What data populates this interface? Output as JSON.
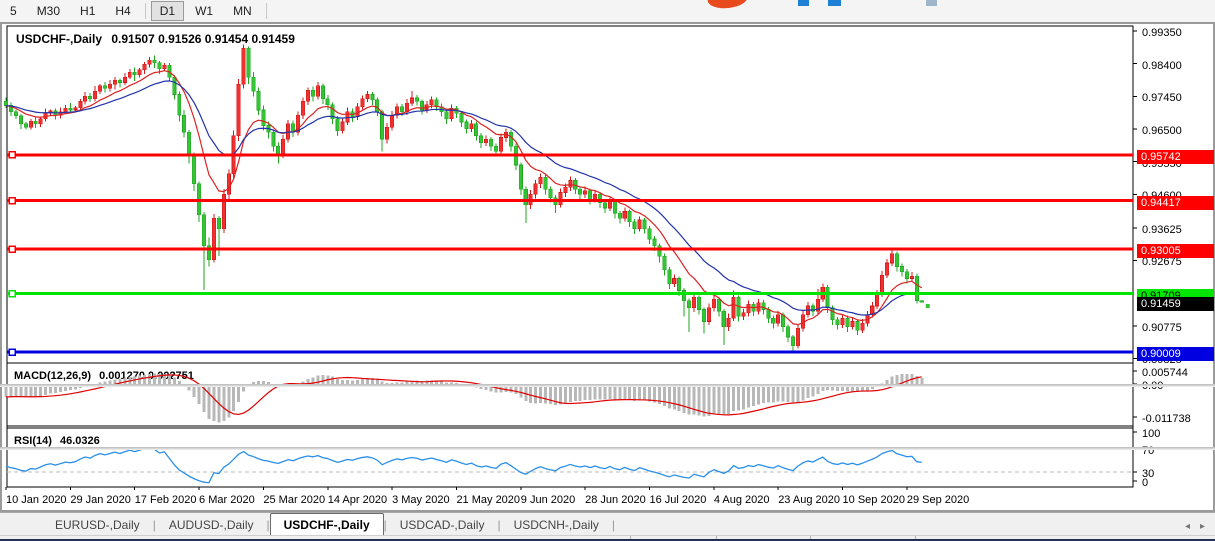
{
  "toolbar": {
    "timeframes": [
      "5",
      "M30",
      "H1",
      "H4",
      "D1",
      "W1",
      "MN"
    ],
    "active_timeframe": "D1",
    "logo_marks": [
      {
        "name": "swoosh",
        "color": "#e8491d",
        "x": 8,
        "w": 40,
        "h": 8,
        "r": true
      },
      {
        "name": "mark1",
        "color": "#1e7fd6",
        "x": 98,
        "w": 11,
        "h": 6,
        "r": false
      },
      {
        "name": "mark2",
        "color": "#1e7fd6",
        "x": 128,
        "w": 13,
        "h": 6,
        "r": false
      },
      {
        "name": "mark3",
        "color": "#9fb6cc",
        "x": 226,
        "w": 11,
        "h": 6,
        "r": false
      }
    ]
  },
  "chart": {
    "title": "USDCHF-,Daily",
    "quotes": "0.91507 0.91526 0.91454 0.91459"
  },
  "macd_panel": {
    "label": "MACD(12,26,9)",
    "values": "0.001270 0.002751",
    "axis_labels": [
      {
        "text": "0.005744",
        "y": 371
      },
      {
        "text": "0.00",
        "y": 384
      },
      {
        "text": "-0.011738",
        "y": 417
      }
    ]
  },
  "rsi_panel": {
    "label": "RSI(14)",
    "value": "46.0326",
    "axis_labels": [
      {
        "text": "100",
        "y": 432
      },
      {
        "text": "70",
        "y": 449
      },
      {
        "text": "30",
        "y": 472
      },
      {
        "text": "0",
        "y": 481
      }
    ]
  },
  "tabs": {
    "items": [
      "EURUSD-,Daily",
      "AUDUSD-,Daily",
      "USDCHF-,Daily",
      "USDCAD-,Daily",
      "USDCNH-,Daily"
    ],
    "active_index": 2,
    "scroll_left": "◂",
    "scroll_right": "▸"
  },
  "status_separators_x": [
    630,
    716,
    810,
    915
  ],
  "chart_data": {
    "type": "candlestick",
    "symbol": "USDCHF",
    "timeframe": "Daily",
    "colors": {
      "up": "#f23030",
      "up_border": "#d01818",
      "down": "#35c435",
      "down_border": "#1ea81e",
      "ma_fast": "#dd2222",
      "ma_slow": "#2233aa",
      "macd_hist": "#b8b8b8",
      "macd_signal": "#e00000",
      "rsi_line": "#2a8fe8",
      "level_dash": "#bbbbbb"
    },
    "price_pane": {
      "y_top": 26,
      "y_bottom": 362,
      "price_top": 0.99493,
      "price_bottom": 0.89722
    },
    "y_ticks": [
      0.9935,
      0.984,
      0.9745,
      0.965,
      0.9555,
      0.946,
      0.93625,
      0.92675,
      0.90775,
      0.89825
    ],
    "sr_lines": [
      {
        "price": 0.95742,
        "label": "0.95742",
        "color": "#ff0000",
        "text_color": "#ffffff"
      },
      {
        "price": 0.94417,
        "label": "0.94417",
        "color": "#ff0000",
        "text_color": "#ffffff"
      },
      {
        "price": 0.93005,
        "label": "0.93005",
        "color": "#ff0000",
        "text_color": "#ffffff"
      },
      {
        "price": 0.91709,
        "label": "0.91709",
        "color": "#00e400",
        "text_color": "#000000"
      },
      {
        "price": 0.90009,
        "label": "0.90009",
        "color": "#0000e0",
        "text_color": "#ffffff"
      }
    ],
    "current_price": {
      "price": 0.91459,
      "label": "0.91459",
      "color": "#000000",
      "text_color": "#ffffff"
    },
    "last_marker": {
      "index": 185,
      "price": 0.9135,
      "color": "#35c435"
    },
    "x_ticks": [
      {
        "index": 0,
        "label": "10 Jan 2020"
      },
      {
        "index": 13,
        "label": "29 Jan 2020"
      },
      {
        "index": 26,
        "label": "17 Feb 2020"
      },
      {
        "index": 39,
        "label": "6 Mar 2020"
      },
      {
        "index": 52,
        "label": "25 Mar 2020"
      },
      {
        "index": 65,
        "label": "14 Apr 2020"
      },
      {
        "index": 78,
        "label": "3 May 2020"
      },
      {
        "index": 91,
        "label": "21 May 2020"
      },
      {
        "index": 104,
        "label": "9 Jun 2020"
      },
      {
        "index": 117,
        "label": "28 Jun 2020"
      },
      {
        "index": 130,
        "label": "16 Jul 2020"
      },
      {
        "index": 143,
        "label": "4 Aug 2020"
      },
      {
        "index": 156,
        "label": "23 Aug 2020"
      },
      {
        "index": 169,
        "label": "10 Sep 2020"
      },
      {
        "index": 182,
        "label": "29 Sep 2020"
      }
    ],
    "ma_fast_period": 10,
    "ma_slow_period": 22,
    "macd": {
      "fast": 12,
      "slow": 26,
      "signal": 9,
      "scale_max": 0.005744,
      "scale_min": -0.011738,
      "pane_top": 364,
      "pane_bottom": 425
    },
    "rsi": {
      "period": 14,
      "levels": [
        70,
        30
      ],
      "pane_y70": 449,
      "pane_y30": 472
    },
    "candles": [
      [
        0.973,
        0.9742,
        0.9711,
        0.9718
      ],
      [
        0.9718,
        0.9727,
        0.9688,
        0.97
      ],
      [
        0.97,
        0.9706,
        0.9679,
        0.9688
      ],
      [
        0.9688,
        0.9694,
        0.965,
        0.9665
      ],
      [
        0.9665,
        0.967,
        0.9648,
        0.9655
      ],
      [
        0.9655,
        0.9679,
        0.9648,
        0.9672
      ],
      [
        0.9672,
        0.9684,
        0.9653,
        0.9665
      ],
      [
        0.9665,
        0.9686,
        0.9656,
        0.968
      ],
      [
        0.968,
        0.971,
        0.9672,
        0.9695
      ],
      [
        0.9695,
        0.9707,
        0.969,
        0.9702
      ],
      [
        0.9702,
        0.9709,
        0.9678,
        0.969
      ],
      [
        0.969,
        0.9712,
        0.9681,
        0.97
      ],
      [
        0.97,
        0.9719,
        0.9695,
        0.971
      ],
      [
        0.971,
        0.9725,
        0.9698,
        0.9705
      ],
      [
        0.9705,
        0.9717,
        0.97,
        0.9712
      ],
      [
        0.9712,
        0.9737,
        0.9702,
        0.973
      ],
      [
        0.973,
        0.9757,
        0.9721,
        0.9745
      ],
      [
        0.9745,
        0.9754,
        0.9729,
        0.9738
      ],
      [
        0.9738,
        0.9775,
        0.973,
        0.976
      ],
      [
        0.976,
        0.978,
        0.9752,
        0.9775
      ],
      [
        0.9775,
        0.9787,
        0.9756,
        0.9768
      ],
      [
        0.9768,
        0.9792,
        0.9759,
        0.978
      ],
      [
        0.978,
        0.9801,
        0.9765,
        0.9792
      ],
      [
        0.9792,
        0.9797,
        0.977,
        0.9785
      ],
      [
        0.9785,
        0.9812,
        0.9778,
        0.98
      ],
      [
        0.98,
        0.9824,
        0.9795,
        0.9815
      ],
      [
        0.9815,
        0.9829,
        0.979,
        0.9808
      ],
      [
        0.9808,
        0.9827,
        0.98,
        0.9822
      ],
      [
        0.9822,
        0.9845,
        0.981,
        0.9838
      ],
      [
        0.9838,
        0.9859,
        0.9829,
        0.985
      ],
      [
        0.985,
        0.9864,
        0.9827,
        0.9842
      ],
      [
        0.9842,
        0.9847,
        0.981,
        0.9825
      ],
      [
        0.9825,
        0.9841,
        0.982,
        0.9835
      ],
      [
        0.9835,
        0.9842,
        0.9788,
        0.98
      ],
      [
        0.98,
        0.9807,
        0.9735,
        0.975
      ],
      [
        0.975,
        0.9759,
        0.9672,
        0.969
      ],
      [
        0.969,
        0.9705,
        0.9625,
        0.964
      ],
      [
        0.964,
        0.9647,
        0.955,
        0.957
      ],
      [
        0.957,
        0.9582,
        0.947,
        0.949
      ],
      [
        0.949,
        0.9497,
        0.938,
        0.94
      ],
      [
        0.94,
        0.9409,
        0.9182,
        0.931
      ],
      [
        0.931,
        0.9334,
        0.925,
        0.927
      ],
      [
        0.927,
        0.9402,
        0.9262,
        0.939
      ],
      [
        0.939,
        0.9397,
        0.928,
        0.936
      ],
      [
        0.936,
        0.9475,
        0.9348,
        0.946
      ],
      [
        0.946,
        0.9532,
        0.9445,
        0.952
      ],
      [
        0.952,
        0.9645,
        0.9508,
        0.963
      ],
      [
        0.963,
        0.9795,
        0.9615,
        0.978
      ],
      [
        0.978,
        0.9895,
        0.9768,
        0.9885
      ],
      [
        0.9885,
        0.989,
        0.978,
        0.98
      ],
      [
        0.98,
        0.9816,
        0.9744,
        0.976
      ],
      [
        0.976,
        0.977,
        0.969,
        0.9705
      ],
      [
        0.9705,
        0.9718,
        0.9645,
        0.966
      ],
      [
        0.966,
        0.9672,
        0.9622,
        0.964
      ],
      [
        0.964,
        0.9649,
        0.9585,
        0.96
      ],
      [
        0.96,
        0.961,
        0.955,
        0.9575
      ],
      [
        0.9575,
        0.9632,
        0.9566,
        0.962
      ],
      [
        0.962,
        0.9676,
        0.961,
        0.9665
      ],
      [
        0.9665,
        0.9674,
        0.9626,
        0.964
      ],
      [
        0.964,
        0.9701,
        0.9631,
        0.969
      ],
      [
        0.969,
        0.9741,
        0.9679,
        0.973
      ],
      [
        0.973,
        0.9771,
        0.972,
        0.9762
      ],
      [
        0.9762,
        0.9773,
        0.973,
        0.9745
      ],
      [
        0.9745,
        0.9786,
        0.9736,
        0.9775
      ],
      [
        0.9775,
        0.9782,
        0.9723,
        0.9738
      ],
      [
        0.9738,
        0.9749,
        0.9705,
        0.972
      ],
      [
        0.972,
        0.9727,
        0.9665,
        0.968
      ],
      [
        0.968,
        0.9688,
        0.963,
        0.9645
      ],
      [
        0.9645,
        0.9681,
        0.9636,
        0.967
      ],
      [
        0.967,
        0.9712,
        0.9661,
        0.97
      ],
      [
        0.97,
        0.9709,
        0.967,
        0.9685
      ],
      [
        0.9685,
        0.9726,
        0.9676,
        0.9715
      ],
      [
        0.9715,
        0.9747,
        0.9706,
        0.9738
      ],
      [
        0.9738,
        0.9761,
        0.9729,
        0.975
      ],
      [
        0.975,
        0.9758,
        0.972,
        0.9735
      ],
      [
        0.9735,
        0.9742,
        0.9688,
        0.97
      ],
      [
        0.97,
        0.9707,
        0.9585,
        0.962
      ],
      [
        0.962,
        0.9667,
        0.9608,
        0.9655
      ],
      [
        0.9655,
        0.9702,
        0.9646,
        0.969
      ],
      [
        0.969,
        0.9724,
        0.968,
        0.9715
      ],
      [
        0.9715,
        0.9722,
        0.9688,
        0.97
      ],
      [
        0.97,
        0.9737,
        0.9691,
        0.9725
      ],
      [
        0.9725,
        0.976,
        0.9716,
        0.974
      ],
      [
        0.974,
        0.9749,
        0.9718,
        0.973
      ],
      [
        0.973,
        0.9736,
        0.9692,
        0.9705
      ],
      [
        0.9705,
        0.9731,
        0.9696,
        0.972
      ],
      [
        0.972,
        0.9744,
        0.971,
        0.9735
      ],
      [
        0.9735,
        0.9742,
        0.9702,
        0.9715
      ],
      [
        0.9715,
        0.9724,
        0.9686,
        0.97
      ],
      [
        0.97,
        0.9707,
        0.9665,
        0.968
      ],
      [
        0.968,
        0.9721,
        0.9671,
        0.971
      ],
      [
        0.971,
        0.9717,
        0.9682,
        0.9695
      ],
      [
        0.9695,
        0.9702,
        0.9655,
        0.967
      ],
      [
        0.967,
        0.9678,
        0.9636,
        0.965
      ],
      [
        0.965,
        0.9676,
        0.9641,
        0.9665
      ],
      [
        0.9665,
        0.9671,
        0.9616,
        0.963
      ],
      [
        0.963,
        0.9638,
        0.9595,
        0.961
      ],
      [
        0.961,
        0.9631,
        0.9601,
        0.962
      ],
      [
        0.962,
        0.9627,
        0.9586,
        0.96
      ],
      [
        0.96,
        0.9608,
        0.957,
        0.9585
      ],
      [
        0.9585,
        0.9637,
        0.9576,
        0.9625
      ],
      [
        0.9625,
        0.9651,
        0.9612,
        0.964
      ],
      [
        0.964,
        0.9647,
        0.9585,
        0.96
      ],
      [
        0.96,
        0.9608,
        0.953,
        0.9545
      ],
      [
        0.9545,
        0.9552,
        0.9458,
        0.9475
      ],
      [
        0.9475,
        0.9482,
        0.9376,
        0.943
      ],
      [
        0.943,
        0.9473,
        0.9417,
        0.946
      ],
      [
        0.946,
        0.9502,
        0.9448,
        0.949
      ],
      [
        0.949,
        0.9521,
        0.9478,
        0.951
      ],
      [
        0.951,
        0.9517,
        0.946,
        0.9475
      ],
      [
        0.9475,
        0.9483,
        0.9436,
        0.945
      ],
      [
        0.945,
        0.9458,
        0.9405,
        0.943
      ],
      [
        0.943,
        0.9477,
        0.9421,
        0.9465
      ],
      [
        0.9465,
        0.9491,
        0.9452,
        0.948
      ],
      [
        0.948,
        0.9512,
        0.947,
        0.95
      ],
      [
        0.95,
        0.9507,
        0.9461,
        0.9475
      ],
      [
        0.9475,
        0.9483,
        0.9446,
        0.946
      ],
      [
        0.946,
        0.9482,
        0.9449,
        0.947
      ],
      [
        0.947,
        0.9477,
        0.943,
        0.9445
      ],
      [
        0.9445,
        0.9471,
        0.9436,
        0.946
      ],
      [
        0.946,
        0.9467,
        0.942,
        0.9435
      ],
      [
        0.9435,
        0.9443,
        0.9405,
        0.942
      ],
      [
        0.942,
        0.9451,
        0.9411,
        0.944
      ],
      [
        0.944,
        0.9446,
        0.939,
        0.9405
      ],
      [
        0.9405,
        0.9412,
        0.9375,
        0.939
      ],
      [
        0.939,
        0.9421,
        0.9381,
        0.941
      ],
      [
        0.941,
        0.9416,
        0.9365,
        0.938
      ],
      [
        0.938,
        0.9388,
        0.9345,
        0.936
      ],
      [
        0.936,
        0.9396,
        0.9351,
        0.9385
      ],
      [
        0.9385,
        0.9391,
        0.9346,
        0.936
      ],
      [
        0.936,
        0.9367,
        0.9315,
        0.933
      ],
      [
        0.933,
        0.9338,
        0.9295,
        0.931
      ],
      [
        0.931,
        0.9317,
        0.9262,
        0.928
      ],
      [
        0.928,
        0.9287,
        0.9224,
        0.924
      ],
      [
        0.924,
        0.9248,
        0.9184,
        0.92
      ],
      [
        0.92,
        0.9227,
        0.919,
        0.9215
      ],
      [
        0.9215,
        0.9221,
        0.9164,
        0.918
      ],
      [
        0.918,
        0.9187,
        0.9105,
        0.915
      ],
      [
        0.915,
        0.9157,
        0.906,
        0.913
      ],
      [
        0.913,
        0.9172,
        0.9118,
        0.916
      ],
      [
        0.916,
        0.9166,
        0.911,
        0.9125
      ],
      [
        0.9125,
        0.9131,
        0.9055,
        0.909
      ],
      [
        0.909,
        0.9142,
        0.908,
        0.913
      ],
      [
        0.913,
        0.9168,
        0.9119,
        0.9155
      ],
      [
        0.9155,
        0.9161,
        0.9105,
        0.912
      ],
      [
        0.912,
        0.9126,
        0.9022,
        0.9075
      ],
      [
        0.9075,
        0.9113,
        0.9062,
        0.91
      ],
      [
        0.91,
        0.918,
        0.9091,
        0.916
      ],
      [
        0.916,
        0.9166,
        0.909,
        0.9105
      ],
      [
        0.9105,
        0.9127,
        0.9094,
        0.9115
      ],
      [
        0.9115,
        0.9151,
        0.9105,
        0.914
      ],
      [
        0.914,
        0.9147,
        0.9106,
        0.912
      ],
      [
        0.912,
        0.9156,
        0.9111,
        0.9145
      ],
      [
        0.9145,
        0.9152,
        0.911,
        0.9125
      ],
      [
        0.9125,
        0.9132,
        0.9086,
        0.91
      ],
      [
        0.91,
        0.9108,
        0.907,
        0.9085
      ],
      [
        0.9085,
        0.9121,
        0.9076,
        0.911
      ],
      [
        0.911,
        0.9116,
        0.906,
        0.9075
      ],
      [
        0.9075,
        0.9081,
        0.903,
        0.9045
      ],
      [
        0.9045,
        0.9051,
        0.8998,
        0.902
      ],
      [
        0.902,
        0.9082,
        0.9011,
        0.907
      ],
      [
        0.907,
        0.9122,
        0.9061,
        0.911
      ],
      [
        0.911,
        0.9147,
        0.9101,
        0.9135
      ],
      [
        0.9135,
        0.9142,
        0.9106,
        0.912
      ],
      [
        0.912,
        0.9185,
        0.9111,
        0.9155
      ],
      [
        0.9155,
        0.9201,
        0.9146,
        0.919
      ],
      [
        0.919,
        0.9196,
        0.9115,
        0.913
      ],
      [
        0.913,
        0.9136,
        0.908,
        0.9095
      ],
      [
        0.9095,
        0.9103,
        0.9066,
        0.908
      ],
      [
        0.908,
        0.9112,
        0.9071,
        0.91
      ],
      [
        0.91,
        0.9107,
        0.906,
        0.9075
      ],
      [
        0.9075,
        0.9101,
        0.9066,
        0.909
      ],
      [
        0.909,
        0.9096,
        0.905,
        0.9065
      ],
      [
        0.9065,
        0.9097,
        0.9056,
        0.9085
      ],
      [
        0.9085,
        0.9121,
        0.9076,
        0.911
      ],
      [
        0.911,
        0.9146,
        0.9101,
        0.9135
      ],
      [
        0.9135,
        0.9182,
        0.9126,
        0.917
      ],
      [
        0.917,
        0.9237,
        0.9161,
        0.9225
      ],
      [
        0.9225,
        0.9272,
        0.9216,
        0.926
      ],
      [
        0.926,
        0.9297,
        0.9251,
        0.9287
      ],
      [
        0.9287,
        0.9293,
        0.9236,
        0.925
      ],
      [
        0.925,
        0.9258,
        0.9221,
        0.9235
      ],
      [
        0.9235,
        0.9242,
        0.9201,
        0.9215
      ],
      [
        0.9215,
        0.9234,
        0.9206,
        0.9222
      ],
      [
        0.9222,
        0.9229,
        0.9143,
        0.9151
      ],
      [
        0.91507,
        0.91526,
        0.91454,
        0.91459
      ]
    ]
  }
}
